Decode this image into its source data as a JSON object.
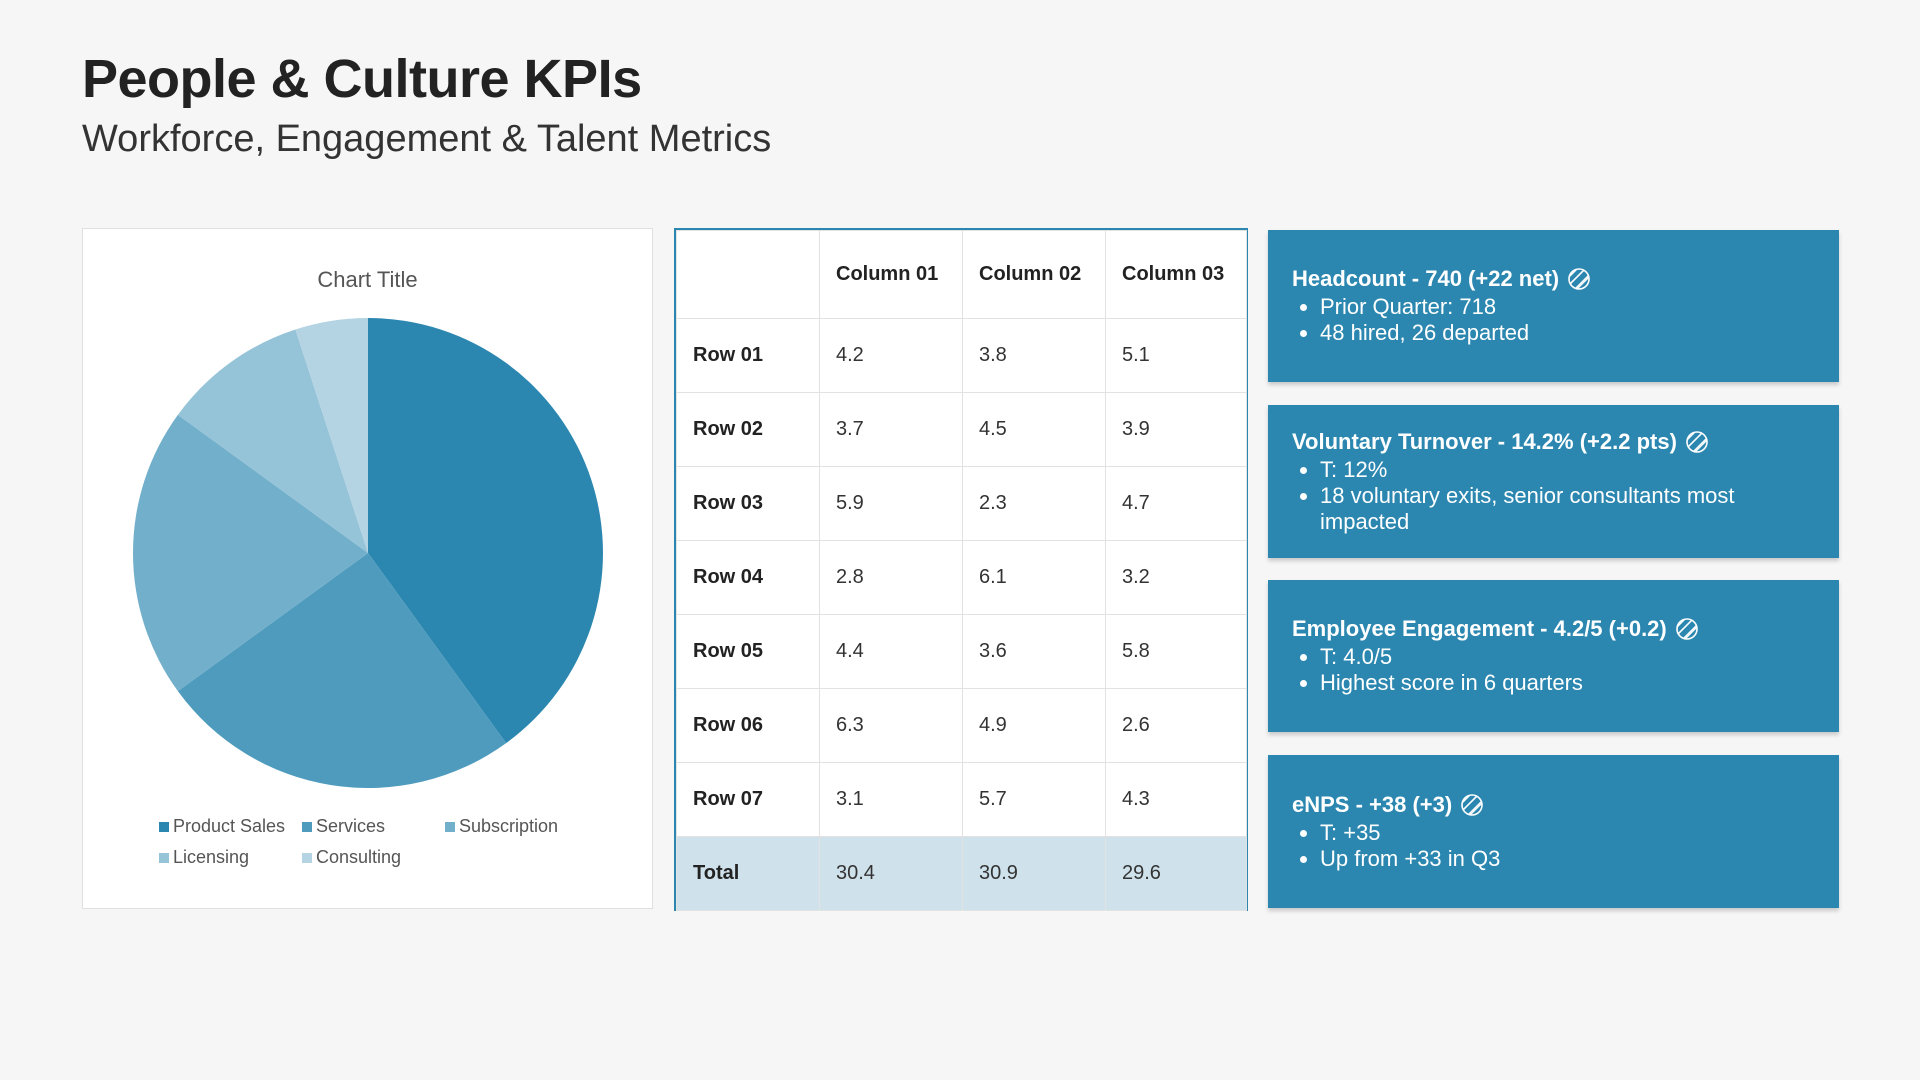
{
  "header": {
    "title": "People & Culture KPIs",
    "subtitle": "Workforce, Engagement & Talent Metrics"
  },
  "chart_data": {
    "type": "pie",
    "title": "Chart Title",
    "categories": [
      "Product Sales",
      "Services",
      "Subscription",
      "Licensing",
      "Consulting"
    ],
    "values": [
      40,
      25,
      20,
      10,
      5
    ],
    "colors": [
      "#2b87b0",
      "#4e9bbd",
      "#72afcb",
      "#95c3d8",
      "#b4d4e3"
    ],
    "legend_position": "bottom"
  },
  "table": {
    "columns": [
      "",
      "Column 01",
      "Column 02",
      "Column 03"
    ],
    "rows": [
      [
        "Row 01",
        "4.2",
        "3.8",
        "5.1"
      ],
      [
        "Row 02",
        "3.7",
        "4.5",
        "3.9"
      ],
      [
        "Row 03",
        "5.9",
        "2.3",
        "4.7"
      ],
      [
        "Row 04",
        "2.8",
        "6.1",
        "3.2"
      ],
      [
        "Row 05",
        "4.4",
        "3.6",
        "5.8"
      ],
      [
        "Row 06",
        "6.3",
        "4.9",
        "2.6"
      ],
      [
        "Row 07",
        "3.1",
        "5.7",
        "4.3"
      ]
    ],
    "total": [
      "Total",
      "30.4",
      "30.9",
      "29.6"
    ]
  },
  "kpis": [
    {
      "heading": "Headcount - 740 (+22 net)",
      "icon": "hatched-circle-icon",
      "bullets": [
        "Prior Quarter: 718",
        "48 hired, 26 departed"
      ]
    },
    {
      "heading": "Voluntary Turnover - 14.2% (+2.2 pts)",
      "icon": "hatched-circle-icon",
      "bullets": [
        "T: 12%",
        "18 voluntary exits, senior consultants most impacted"
      ]
    },
    {
      "heading": "Employee Engagement - 4.2/5 (+0.2)",
      "icon": "hatched-circle-icon",
      "bullets": [
        "T: 4.0/5",
        "Highest score in 6 quarters"
      ]
    },
    {
      "heading": "eNPS - +38 (+3)",
      "icon": "hatched-circle-icon",
      "bullets": [
        "T: +35",
        "Up from +33 in Q3"
      ]
    }
  ]
}
